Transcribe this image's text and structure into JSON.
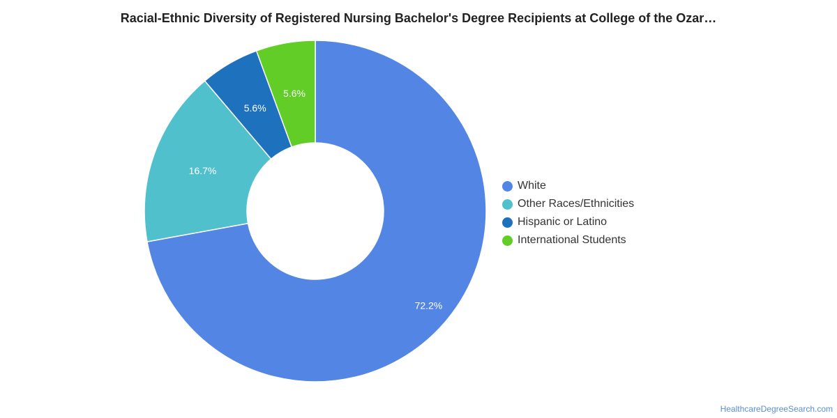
{
  "chart_data": {
    "type": "pie",
    "donut": true,
    "title": "Racial-Ethnic Diversity of Registered Nursing Bachelor's Degree Recipients at College of the Ozar…",
    "slices": [
      {
        "name": "White",
        "value": 72.2,
        "label": "72.2%",
        "color": "#5386e4"
      },
      {
        "name": "Other Races/Ethnicities",
        "value": 16.7,
        "label": "16.7%",
        "color": "#51c0cd"
      },
      {
        "name": "Hispanic or Latino",
        "value": 5.6,
        "label": "5.6%",
        "color": "#1e72bd"
      },
      {
        "name": "International Students",
        "value": 5.6,
        "label": "5.6%",
        "color": "#62cd26"
      }
    ],
    "legend_position": "right"
  },
  "source": "HealthcareDegreeSearch.com"
}
